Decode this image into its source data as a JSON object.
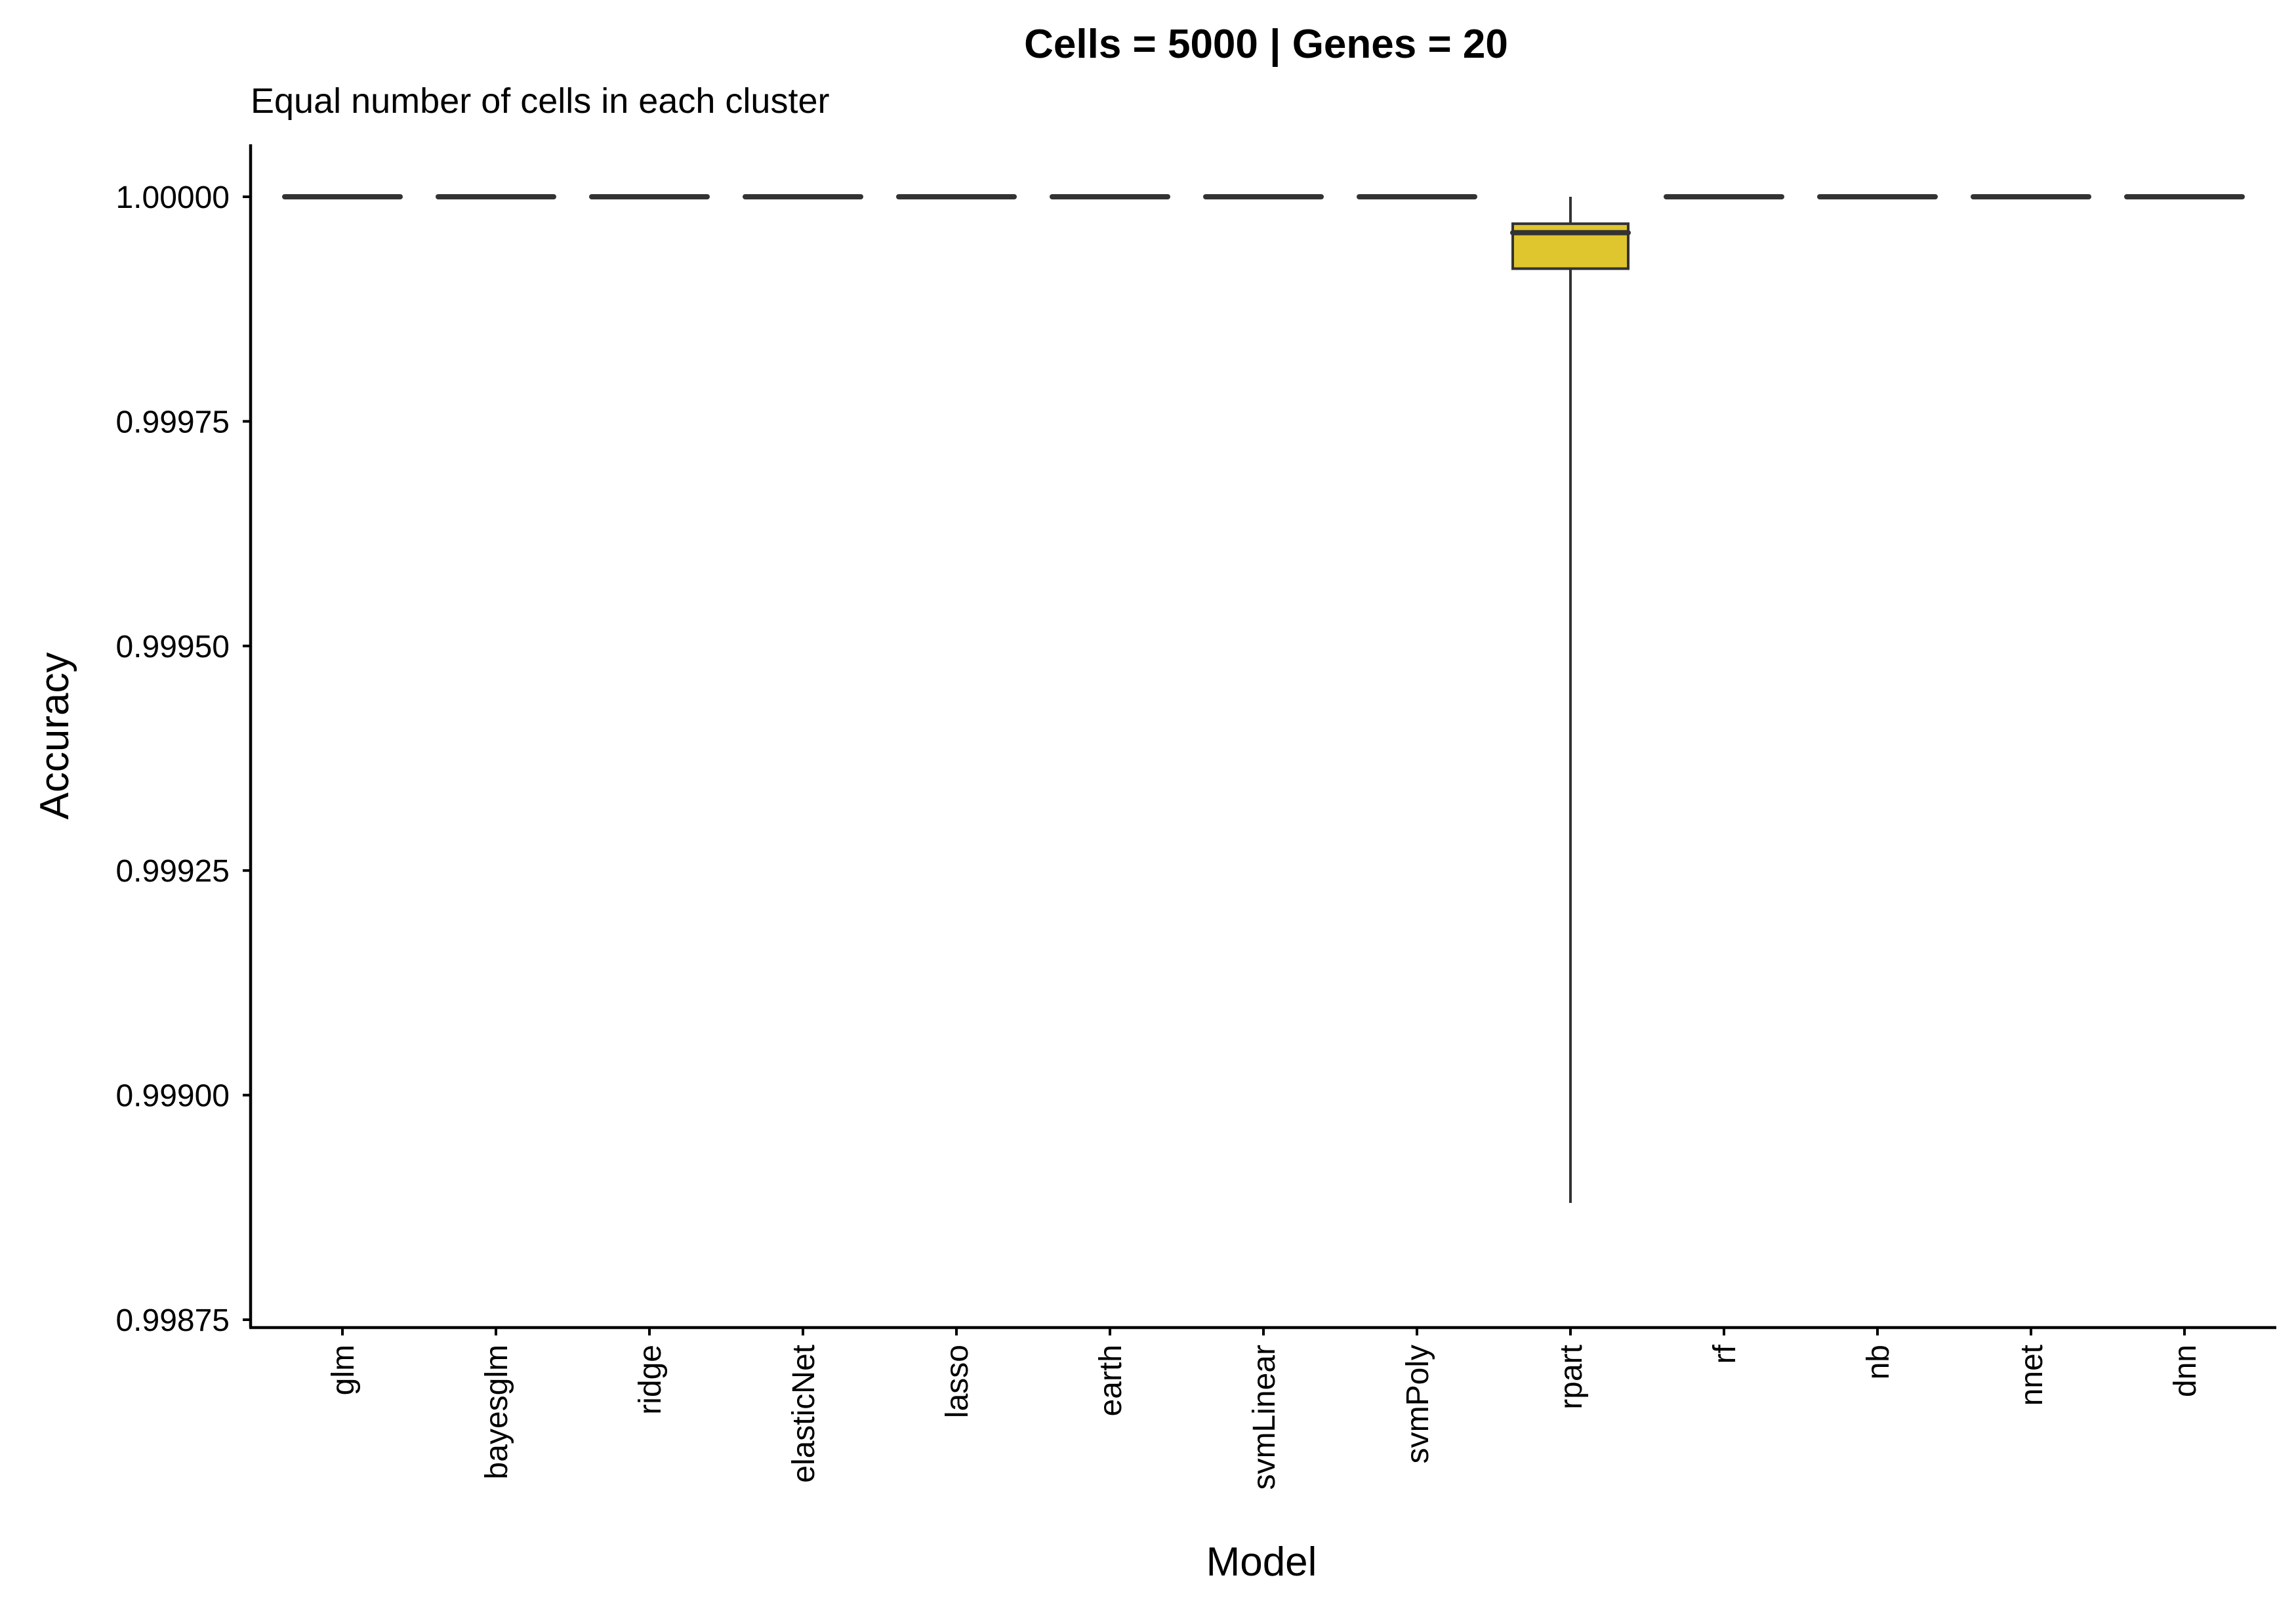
{
  "chart_data": {
    "type": "box",
    "title": "Cells = 5000 | Genes = 20",
    "subtitle": "Equal number of cells in each cluster",
    "xlabel": "Model",
    "ylabel": "Accuracy",
    "ylim": [
      0.99875,
      1.0
    ],
    "yticks": [
      "1.00000",
      "0.99975",
      "0.99950",
      "0.99925",
      "0.99900",
      "0.99875"
    ],
    "grid": false,
    "fill_color": "#E0C62E",
    "categories": [
      "glm",
      "bayesglm",
      "ridge",
      "elasticNet",
      "lasso",
      "earth",
      "svmLinear",
      "svmPoly",
      "rpart",
      "rf",
      "nb",
      "nnet",
      "dnn"
    ],
    "boxes": [
      {
        "category": "glm",
        "min": 1.0,
        "q1": 1.0,
        "median": 1.0,
        "q3": 1.0,
        "max": 1.0
      },
      {
        "category": "bayesglm",
        "min": 1.0,
        "q1": 1.0,
        "median": 1.0,
        "q3": 1.0,
        "max": 1.0
      },
      {
        "category": "ridge",
        "min": 1.0,
        "q1": 1.0,
        "median": 1.0,
        "q3": 1.0,
        "max": 1.0
      },
      {
        "category": "elasticNet",
        "min": 1.0,
        "q1": 1.0,
        "median": 1.0,
        "q3": 1.0,
        "max": 1.0
      },
      {
        "category": "lasso",
        "min": 1.0,
        "q1": 1.0,
        "median": 1.0,
        "q3": 1.0,
        "max": 1.0
      },
      {
        "category": "earth",
        "min": 1.0,
        "q1": 1.0,
        "median": 1.0,
        "q3": 1.0,
        "max": 1.0
      },
      {
        "category": "svmLinear",
        "min": 1.0,
        "q1": 1.0,
        "median": 1.0,
        "q3": 1.0,
        "max": 1.0
      },
      {
        "category": "svmPoly",
        "min": 1.0,
        "q1": 1.0,
        "median": 1.0,
        "q3": 1.0,
        "max": 1.0
      },
      {
        "category": "rpart",
        "min": 0.99888,
        "q1": 0.99992,
        "median": 0.99996,
        "q3": 0.99997,
        "max": 1.0
      },
      {
        "category": "rf",
        "min": 1.0,
        "q1": 1.0,
        "median": 1.0,
        "q3": 1.0,
        "max": 1.0
      },
      {
        "category": "nb",
        "min": 1.0,
        "q1": 1.0,
        "median": 1.0,
        "q3": 1.0,
        "max": 1.0
      },
      {
        "category": "nnet",
        "min": 1.0,
        "q1": 1.0,
        "median": 1.0,
        "q3": 1.0,
        "max": 1.0
      },
      {
        "category": "dnn",
        "min": 1.0,
        "q1": 1.0,
        "median": 1.0,
        "q3": 1.0,
        "max": 1.0
      }
    ]
  }
}
